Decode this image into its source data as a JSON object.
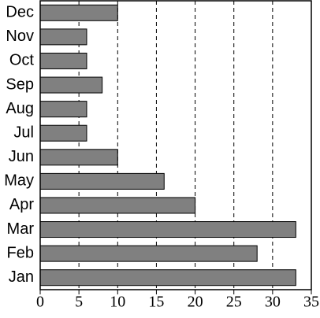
{
  "chart_data": {
    "type": "barh",
    "categories": [
      "Jan",
      "Feb",
      "Mar",
      "Apr",
      "May",
      "Jun",
      "Jul",
      "Aug",
      "Sep",
      "Oct",
      "Nov",
      "Dec"
    ],
    "values": [
      33,
      28,
      33,
      20,
      16,
      10,
      6,
      6,
      8,
      6,
      6,
      10
    ],
    "color": "#808080",
    "xlim": [
      0,
      35
    ],
    "xticks": [
      0,
      5,
      10,
      15,
      20,
      25,
      30,
      35
    ],
    "grid": true
  }
}
